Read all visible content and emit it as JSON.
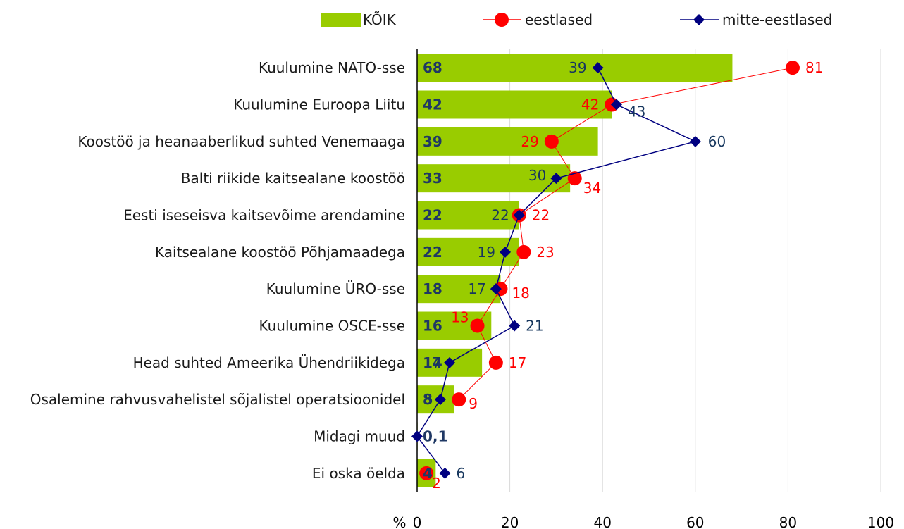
{
  "chart_data": {
    "type": "bar",
    "categories": [
      "Kuulumine NATO-sse",
      "Kuulumine Euroopa Liitu",
      "Koostöö ja heanaaberlikud suhted Venemaaga",
      "Balti riikide kaitsealane koostöö",
      "Eesti iseseisva kaitsevõime arendamine",
      "Kaitsealane koostöö Põhjamaadega",
      "Kuulumine ÜRO-sse",
      "Kuulumine OSCE-sse",
      "Head suhted Ameerika Ühendriikidega",
      "Osalemine rahvusvahelistel sõjalistel operatsioonidel",
      "Midagi muud",
      "Ei oska öelda"
    ],
    "series": [
      {
        "name": "KÕIK",
        "type": "bar",
        "color": "#99cc00",
        "values": [
          68,
          42,
          39,
          33,
          22,
          22,
          18,
          16,
          14,
          8,
          0.1,
          4
        ],
        "value_labels": [
          "68",
          "42",
          "39",
          "33",
          "22",
          "22",
          "18",
          "16",
          "14",
          "8",
          "0,1",
          "4"
        ]
      },
      {
        "name": "eestlased",
        "type": "line",
        "color": "#ff0000",
        "values": [
          81,
          42,
          29,
          34,
          22,
          23,
          18,
          13,
          17,
          9,
          null,
          2
        ]
      },
      {
        "name": "mitte-eestlased",
        "type": "line",
        "color": "#000080",
        "values": [
          39,
          43,
          60,
          30,
          22,
          19,
          17,
          21,
          7,
          5,
          0,
          6
        ],
        "value_labels": [
          "39",
          "43",
          "60",
          "30",
          "22",
          "19",
          "17",
          "21",
          "7",
          "5",
          null,
          "6"
        ]
      }
    ],
    "xlabel": "%",
    "xlim": [
      0,
      100
    ],
    "xticks": [
      0,
      20,
      40,
      60,
      80,
      100
    ],
    "grid": true
  }
}
